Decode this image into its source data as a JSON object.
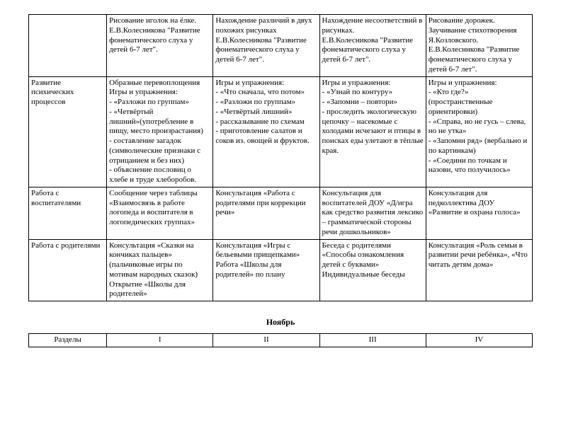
{
  "table1": {
    "cols": [
      "col0",
      "col1",
      "col2",
      "col3",
      "col4"
    ],
    "rows": [
      {
        "c0": "",
        "c1": "Рисование иголок  на ёлке. Е.В.Колесникова \"Развитие фонематического слуха у детей 6-7 лет\".",
        "c2": "Нахождение различий в двух похожих рисунках\nЕ.В.Колесникова \"Развитие фонематического слуха у детей 6-7 лет\".",
        "c3": "Нахождение несоответствий в рисунках.\nЕ.В.Колесникова \"Развитие фонематического слуха у детей 6-7 лет\".",
        "c4": "Рисование дорожек.\nЗаучивание стихотворения Я.Козловского.\nЕ.В.Колесникова \"Развитие фонематического слуха у детей 6-7 лет\"."
      },
      {
        "c0": "Развитие психических процессов",
        "c1": "Образные  перевоплощения\nИгры и упражнения:\n- «Разложи по группам»\n- «Четвёртый лишний»(употребление в пищу, место произрастания)\n- составление загадок (символические признаки с отрицанием и без них)\n- объяснение пословиц о хлебе и труде хлеборобов.",
        "c2": "Игры и упражнения:\n- «Что сначала, что потом»\n- «Разложи по группам»\n- «Четвёртый лишний»\n- рассказывание по схемам\n- приготовление салатов и соков из. овощей и фруктов.",
        "c3": "Игры и упражнения:\n- «Узнай по контуру»\n- «Запомни – повтори»\n- проследить экологическую цепочку – насекомые с холодами исчезают и птицы в поисках еды улетают в тёплые края.",
        "c4": "Игры и упражнения:\n- «Кто где?» (пространственные ориентировки)\n- «Справа, но не гусь – слева, но не утка»\n- «Запомни ряд» (вербально и по картинкам)\n- «Соедини по точкам и назови, что получилось»"
      },
      {
        "c0": "Работа с воспитателями",
        "c1": "Сообщение через таблицы «Взаимосвязь в работе логопеда и воспитателя в логопедических группах»",
        "c2": "Консультация «Работа с родителями при коррекции речи»",
        "c3": "Консультация для воспитателей ДОУ «Д/игра как средство развития лексико – грамматической стороны речи дошкольников»",
        "c4": "Консультация для педколлектива ДОУ «Развитие и охрана голоса»"
      },
      {
        "c0": "Работа с родителями",
        "c1": "Консультация «Сказки на кончиках пальцев» (пальчиковые игры по мотивам народных сказок)\nОткрытие «Школы для родителей»",
        "c2": "Консультация «Игры с бельевыми прищепками»\nРабота «Школы для родителей» по плану",
        "c3": "Беседа с родителями «Способы ознакомления детей с буквами»\nИндивидуальные беседы",
        "c4": "Консультация «Роль семьи в развитии речи ребёнка», «Что читать детям дома»"
      }
    ]
  },
  "month": "Ноябрь",
  "table2": {
    "headers": [
      "Разделы",
      "I",
      "II",
      "III",
      "IV"
    ]
  },
  "style": {
    "font_family": "Times New Roman",
    "base_font_size_pt": 11,
    "border_color": "#000000",
    "background": "#ffffff"
  }
}
